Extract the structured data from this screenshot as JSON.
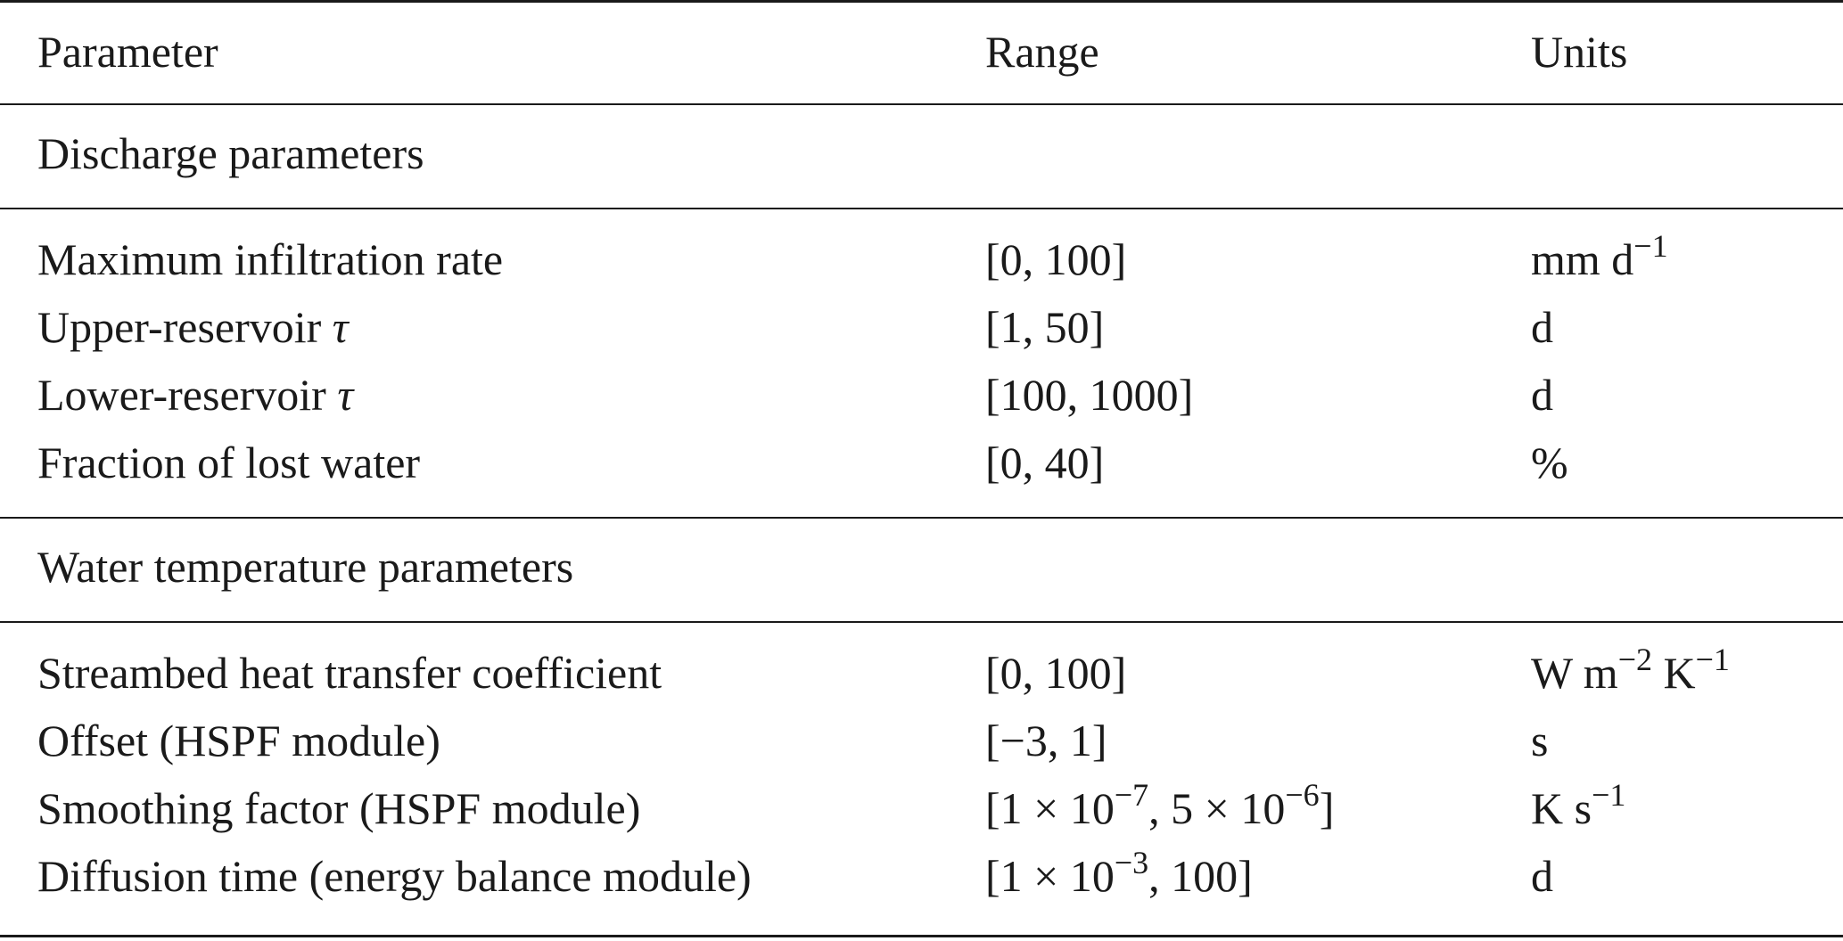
{
  "table": {
    "headers": {
      "parameter": "Parameter",
      "range": "Range",
      "units": "Units"
    },
    "sections": [
      {
        "title": "Discharge parameters",
        "rows": [
          {
            "parameter": "Maximum infiltration rate",
            "range": "[0, 100]",
            "units": "mm d−1"
          },
          {
            "parameter": "Upper-reservoir τ",
            "range": "[1, 50]",
            "units": "d"
          },
          {
            "parameter": "Lower-reservoir τ",
            "range": "[100, 1000]",
            "units": "d"
          },
          {
            "parameter": "Fraction of lost water",
            "range": "[0, 40]",
            "units": "%"
          }
        ]
      },
      {
        "title": "Water temperature parameters",
        "rows": [
          {
            "parameter": "Streambed heat transfer coefficient",
            "range": "[0, 100]",
            "units": "W m−2 K−1"
          },
          {
            "parameter": "Offset (HSPF module)",
            "range": "[−3, 1]",
            "units": "s"
          },
          {
            "parameter": "Smoothing factor (HSPF module)",
            "range": "[1 × 10−7, 5 × 10−6]",
            "units": "K s−1"
          },
          {
            "parameter": "Diffusion time (energy balance module)",
            "range": "[1 × 10−3, 100]",
            "units": "d"
          }
        ]
      }
    ]
  }
}
